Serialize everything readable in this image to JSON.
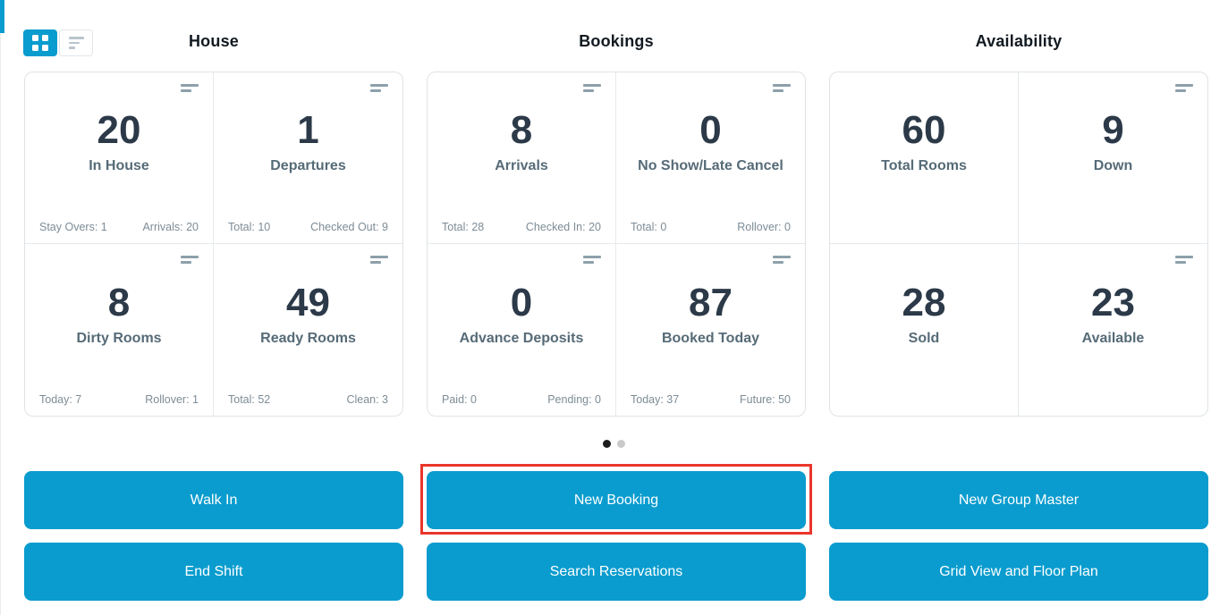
{
  "colors": {
    "accent_blue": "#0a9cce",
    "stat_number": "#2b3948",
    "stat_label": "#566b77",
    "footer_text": "#7d8c96",
    "annotation_red": "#ea352b"
  },
  "view_toggle": {
    "active": "grid"
  },
  "sections": [
    {
      "title": "House",
      "cards": [
        {
          "value": "20",
          "label": "In House",
          "footer_left": "Stay Overs: 1",
          "footer_right": "Arrivals: 20"
        },
        {
          "value": "1",
          "label": "Departures",
          "footer_left": "Total: 10",
          "footer_right": "Checked Out: 9"
        },
        {
          "value": "8",
          "label": "Dirty Rooms",
          "footer_left": "Today: 7",
          "footer_right": "Rollover: 1"
        },
        {
          "value": "49",
          "label": "Ready Rooms",
          "footer_left": "Total: 52",
          "footer_right": "Clean: 3"
        }
      ]
    },
    {
      "title": "Bookings",
      "cards": [
        {
          "value": "8",
          "label": "Arrivals",
          "footer_left": "Total: 28",
          "footer_right": "Checked In: 20"
        },
        {
          "value": "0",
          "label": "No Show/Late Cancel",
          "footer_left": "Total: 0",
          "footer_right": "Rollover: 0"
        },
        {
          "value": "0",
          "label": "Advance Deposits",
          "footer_left": "Paid: 0",
          "footer_right": "Pending: 0"
        },
        {
          "value": "87",
          "label": "Booked Today",
          "footer_left": "Today: 37",
          "footer_right": "Future: 50"
        }
      ]
    },
    {
      "title": "Availability",
      "cards": [
        {
          "value": "60",
          "label": "Total Rooms"
        },
        {
          "value": "9",
          "label": "Down"
        },
        {
          "value": "28",
          "label": "Sold"
        },
        {
          "value": "23",
          "label": "Available"
        }
      ]
    }
  ],
  "pagination": {
    "dot_count": 2,
    "active_index": 0
  },
  "actions": [
    {
      "label": "Walk In"
    },
    {
      "label": "New Booking",
      "highlighted": true
    },
    {
      "label": "New Group Master"
    },
    {
      "label": "End Shift"
    },
    {
      "label": "Search Reservations"
    },
    {
      "label": "Grid View and Floor Plan"
    }
  ]
}
